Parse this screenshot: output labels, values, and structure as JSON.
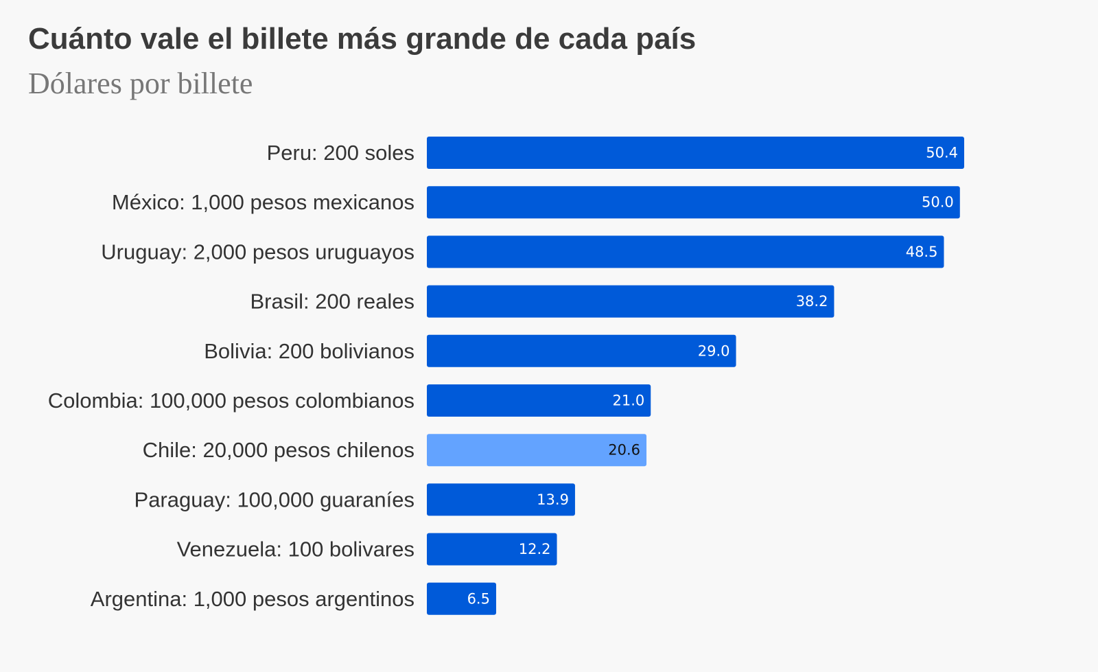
{
  "colors": {
    "background": "#f8f8f8",
    "bar": "#005ad9",
    "bar_highlight": "#63a3ff",
    "value_text": "#ffffff",
    "value_text_highlight": "#111111",
    "category_text": "#333333"
  },
  "chart_data": {
    "type": "bar",
    "orientation": "horizontal",
    "title": "Cuánto vale el billete más grande de cada país",
    "subtitle": "Dólares por billete",
    "categories": [
      "Peru: 200 soles",
      "México: 1,000 pesos mexicanos",
      "Uruguay: 2,000 pesos uruguayos",
      "Brasil: 200 reales",
      "Bolivia: 200 bolivianos",
      "Colombia: 100,000 pesos colombianos",
      "Chile: 20,000 pesos chilenos",
      "Paraguay: 100,000 guaraníes",
      "Venezuela: 100 bolivares",
      "Argentina: 1,000 pesos argentinos"
    ],
    "values": [
      50.4,
      50.0,
      48.5,
      38.2,
      29.0,
      21.0,
      20.6,
      13.9,
      12.2,
      6.5
    ],
    "value_labels": [
      "50.4",
      "50.0",
      "48.5",
      "38.2",
      "29.0",
      "21.0",
      "20.6",
      "13.9",
      "12.2",
      "6.5"
    ],
    "highlight": "Chile: 20,000 pesos chilenos",
    "xlim": [
      0,
      50.4
    ],
    "grid": false,
    "legend": "none",
    "data_labels": "inside-end"
  }
}
